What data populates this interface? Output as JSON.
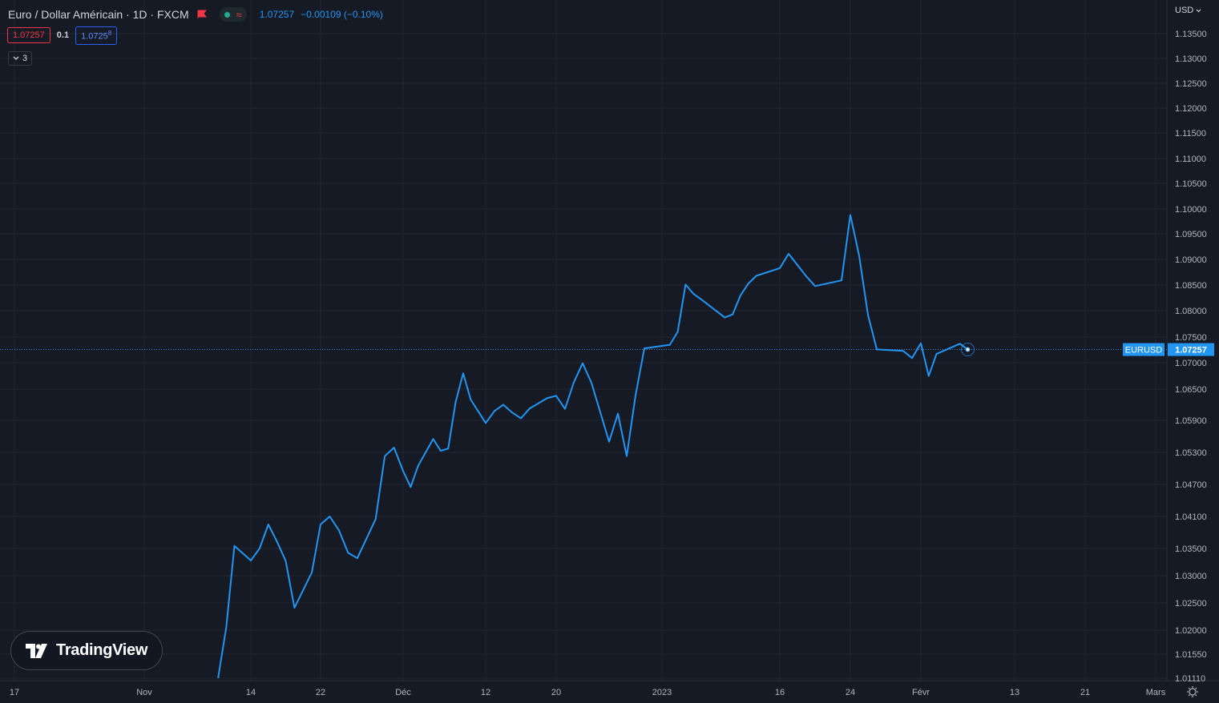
{
  "header": {
    "title": "Euro / Dollar Américain · 1D · FXCM",
    "price": "1.07257",
    "change": "−0.00109 (−0.10%)",
    "flag_icon": "flag-icon",
    "wave_icon": "≈"
  },
  "quote": {
    "sell": "1.07257",
    "spread": "0.1",
    "buy": "1.0725",
    "buy_super": "8"
  },
  "indicator_toggle": {
    "count": "3",
    "icon": "chevron-down-icon"
  },
  "currency_menu": {
    "label": "USD"
  },
  "logo": {
    "text": "TradingView"
  },
  "colors": {
    "background": "#161a25",
    "line": "#2196f3",
    "grid": "#232632",
    "text": "#b2b5be",
    "red": "#f23645",
    "green": "#22ab94"
  },
  "chart_data": {
    "type": "line",
    "symbol": "EURUSD",
    "last_price": "1.07257",
    "last_value": 1.07257,
    "y_ticks": [
      "1.13500",
      "1.13000",
      "1.12500",
      "1.12000",
      "1.11500",
      "1.11000",
      "1.10500",
      "1.10000",
      "1.09500",
      "1.09000",
      "1.08500",
      "1.08000",
      "1.07500",
      "1.07000",
      "1.06500",
      "1.05900",
      "1.05300",
      "1.04700",
      "1.04100",
      "1.03500",
      "1.03000",
      "1.02500",
      "1.02000",
      "1.01550",
      "1.01110"
    ],
    "x_ticks": [
      "17",
      "Nov",
      "14",
      "22",
      "Déc",
      "12",
      "20",
      "2023",
      "16",
      "24",
      "Févr",
      "13",
      "21",
      "Mars"
    ],
    "x_tick_dates": [
      "2022-10-17",
      "2022-11-01",
      "2022-11-14",
      "2022-11-22",
      "2022-12-01",
      "2022-12-12",
      "2022-12-20",
      "2023-01-01",
      "2023-01-16",
      "2023-01-24",
      "2023-02-01",
      "2023-02-13",
      "2023-02-21",
      "2023-03-01"
    ],
    "series": [
      {
        "points": [
          [
            "2022-11-10",
            1.0111
          ],
          [
            "2022-11-11",
            1.0205
          ],
          [
            "2022-11-12",
            1.0355
          ],
          [
            "2022-11-14",
            1.0328
          ],
          [
            "2022-11-15",
            1.035
          ],
          [
            "2022-11-16",
            1.0395
          ],
          [
            "2022-11-17",
            1.0363
          ],
          [
            "2022-11-18",
            1.0327
          ],
          [
            "2022-11-19",
            1.0241
          ],
          [
            "2022-11-21",
            1.0306
          ],
          [
            "2022-11-22",
            1.0395
          ],
          [
            "2022-11-23",
            1.041
          ],
          [
            "2022-11-24",
            1.0384
          ],
          [
            "2022-11-25",
            1.0342
          ],
          [
            "2022-11-26",
            1.0332
          ],
          [
            "2022-11-28",
            1.0405
          ],
          [
            "2022-11-29",
            1.0523
          ],
          [
            "2022-11-30",
            1.0539
          ],
          [
            "2022-12-01",
            1.0495
          ],
          [
            "2022-12-02",
            1.0465
          ],
          [
            "2022-12-03",
            1.0505
          ],
          [
            "2022-12-05",
            1.0555
          ],
          [
            "2022-12-06",
            1.0533
          ],
          [
            "2022-12-07",
            1.0537
          ],
          [
            "2022-12-08",
            1.0625
          ],
          [
            "2022-12-09",
            1.068
          ],
          [
            "2022-12-10",
            1.063
          ],
          [
            "2022-12-12",
            1.0585
          ],
          [
            "2022-12-13",
            1.0608
          ],
          [
            "2022-12-14",
            1.062
          ],
          [
            "2022-12-15",
            1.0605
          ],
          [
            "2022-12-16",
            1.0594
          ],
          [
            "2022-12-17",
            1.0613
          ],
          [
            "2022-12-19",
            1.0633
          ],
          [
            "2022-12-20",
            1.0637
          ],
          [
            "2022-12-21",
            1.0612
          ],
          [
            "2022-12-22",
            1.0663
          ],
          [
            "2022-12-23",
            1.0699
          ],
          [
            "2022-12-24",
            1.0662
          ],
          [
            "2022-12-26",
            1.055
          ],
          [
            "2022-12-27",
            1.0603
          ],
          [
            "2022-12-28",
            1.0523
          ],
          [
            "2022-12-29",
            1.0638
          ],
          [
            "2022-12-30",
            1.0728
          ],
          [
            "2023-01-02",
            1.0735
          ],
          [
            "2023-01-03",
            1.076
          ],
          [
            "2023-01-04",
            1.0851
          ],
          [
            "2023-01-05",
            1.0833
          ],
          [
            "2023-01-06",
            1.0822
          ],
          [
            "2023-01-09",
            1.0787
          ],
          [
            "2023-01-10",
            1.0793
          ],
          [
            "2023-01-11",
            1.083
          ],
          [
            "2023-01-12",
            1.0853
          ],
          [
            "2023-01-13",
            1.0868
          ],
          [
            "2023-01-16",
            1.0883
          ],
          [
            "2023-01-17",
            1.0911
          ],
          [
            "2023-01-18",
            1.0889
          ],
          [
            "2023-01-19",
            1.0867
          ],
          [
            "2023-01-20",
            1.0848
          ],
          [
            "2023-01-23",
            1.0859
          ],
          [
            "2023-01-24",
            1.0988
          ],
          [
            "2023-01-25",
            1.0907
          ],
          [
            "2023-01-26",
            1.0792
          ],
          [
            "2023-01-27",
            1.0726
          ],
          [
            "2023-01-30",
            1.0723
          ],
          [
            "2023-01-31",
            1.0709
          ],
          [
            "2023-02-01",
            1.0738
          ],
          [
            "2023-02-02",
            1.0675
          ],
          [
            "2023-02-03",
            1.0717
          ],
          [
            "2023-02-06",
            1.0737
          ],
          [
            "2023-02-07",
            1.07257
          ]
        ]
      }
    ],
    "xlabel": "",
    "ylabel": "",
    "grid": true,
    "price_line": "dotted"
  }
}
